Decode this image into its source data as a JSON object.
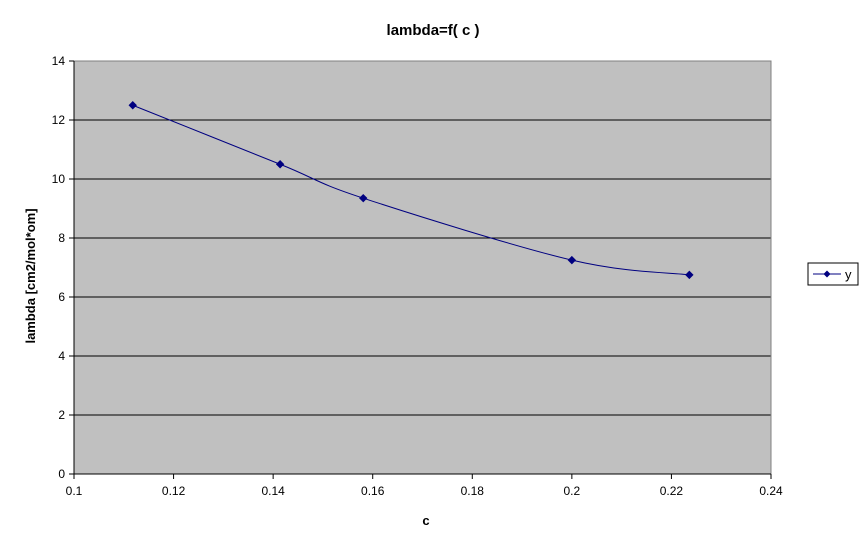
{
  "chart_data": {
    "type": "line",
    "title": "lambda=f( c )",
    "xlabel": "c",
    "ylabel": "lambda [cm2/mol*om]",
    "xlim": [
      0.1,
      0.24
    ],
    "ylim": [
      0,
      14
    ],
    "xticks": [
      0.1,
      0.12,
      0.14,
      0.16,
      0.18,
      0.2,
      0.22,
      0.24
    ],
    "yticks": [
      0,
      2,
      4,
      6,
      8,
      10,
      12,
      14
    ],
    "xtick_labels": [
      "0.1",
      "0.12",
      "0.14",
      "0.16",
      "0.18",
      "0.2",
      "0.22",
      "0.24"
    ],
    "ytick_labels": [
      "0",
      "2",
      "4",
      "6",
      "8",
      "10",
      "12",
      "14"
    ],
    "grid": "horizontal",
    "legend_position": "right",
    "plot_background": "#c0c0c0",
    "series": [
      {
        "name": "y",
        "color": "#000080",
        "marker": "diamond",
        "smooth": true,
        "x": [
          0.1118,
          0.1414,
          0.1581,
          0.2,
          0.2236
        ],
        "y": [
          12.5,
          10.5,
          9.35,
          7.25,
          6.75
        ]
      }
    ]
  }
}
